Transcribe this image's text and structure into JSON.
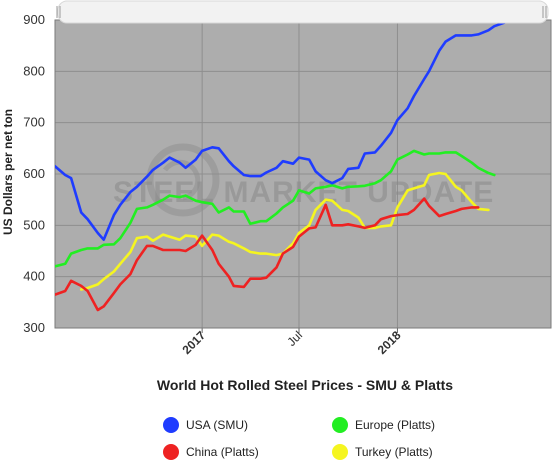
{
  "chart_data": {
    "type": "line",
    "title": "World Hot Rolled Steel Prices - SMU & Platts",
    "xlabel": "",
    "ylabel": "US Dollars per net ton",
    "ylim": [
      300,
      900
    ],
    "yticks": [
      300,
      400,
      500,
      600,
      700,
      800,
      900
    ],
    "xlim": [
      "2016-04-01",
      "2018-10-15"
    ],
    "xticks": [
      {
        "date": "2017-01-01",
        "label": "2017",
        "bold": true
      },
      {
        "date": "2017-07-01",
        "label": "Jul",
        "bold": false
      },
      {
        "date": "2018-01-01",
        "label": "2018",
        "bold": true
      }
    ],
    "grid": true,
    "legend_position": "bottom",
    "background": "#adadad",
    "watermark": "STEEL MARKET UPDATE",
    "series": [
      {
        "name": "USA (SMU)",
        "color": "#1f3cff",
        "points": [
          [
            "2016-04-01",
            615
          ],
          [
            "2016-04-20",
            598
          ],
          [
            "2016-05-01",
            592
          ],
          [
            "2016-05-20",
            525
          ],
          [
            "2016-06-01",
            512
          ],
          [
            "2016-06-20",
            485
          ],
          [
            "2016-07-01",
            472
          ],
          [
            "2016-07-20",
            520
          ],
          [
            "2016-08-01",
            540
          ],
          [
            "2016-08-20",
            565
          ],
          [
            "2016-09-01",
            575
          ],
          [
            "2016-09-20",
            595
          ],
          [
            "2016-10-01",
            608
          ],
          [
            "2016-10-20",
            622
          ],
          [
            "2016-11-01",
            632
          ],
          [
            "2016-11-20",
            622
          ],
          [
            "2016-12-01",
            612
          ],
          [
            "2016-12-20",
            628
          ],
          [
            "2017-01-01",
            645
          ],
          [
            "2017-01-20",
            652
          ],
          [
            "2017-02-01",
            650
          ],
          [
            "2017-02-20",
            625
          ],
          [
            "2017-03-01",
            615
          ],
          [
            "2017-03-20",
            598
          ],
          [
            "2017-04-01",
            596
          ],
          [
            "2017-04-20",
            596
          ],
          [
            "2017-05-01",
            603
          ],
          [
            "2017-05-20",
            612
          ],
          [
            "2017-06-01",
            625
          ],
          [
            "2017-06-20",
            620
          ],
          [
            "2017-07-01",
            632
          ],
          [
            "2017-07-20",
            628
          ],
          [
            "2017-08-01",
            605
          ],
          [
            "2017-08-20",
            588
          ],
          [
            "2017-09-01",
            582
          ],
          [
            "2017-09-20",
            592
          ],
          [
            "2017-10-01",
            610
          ],
          [
            "2017-10-20",
            612
          ],
          [
            "2017-11-01",
            640
          ],
          [
            "2017-11-20",
            642
          ],
          [
            "2017-12-01",
            655
          ],
          [
            "2017-12-20",
            680
          ],
          [
            "2018-01-01",
            705
          ],
          [
            "2018-01-20",
            728
          ],
          [
            "2018-02-01",
            752
          ],
          [
            "2018-02-20",
            785
          ],
          [
            "2018-03-01",
            800
          ],
          [
            "2018-03-20",
            840
          ],
          [
            "2018-04-01",
            858
          ],
          [
            "2018-04-20",
            870
          ],
          [
            "2018-05-01",
            870
          ],
          [
            "2018-05-20",
            870
          ],
          [
            "2018-06-01",
            872
          ],
          [
            "2018-06-20",
            880
          ],
          [
            "2018-07-01",
            888
          ],
          [
            "2018-07-20",
            895
          ],
          [
            "2018-08-01",
            902
          ],
          [
            "2018-08-20",
            908
          ],
          [
            "2018-09-01",
            912
          ]
        ]
      },
      {
        "name": "Europe (Platts)",
        "color": "#22ee22",
        "points": [
          [
            "2016-04-01",
            420
          ],
          [
            "2016-04-20",
            425
          ],
          [
            "2016-05-01",
            445
          ],
          [
            "2016-05-20",
            452
          ],
          [
            "2016-06-01",
            455
          ],
          [
            "2016-06-20",
            455
          ],
          [
            "2016-07-01",
            462
          ],
          [
            "2016-07-20",
            463
          ],
          [
            "2016-08-01",
            475
          ],
          [
            "2016-08-20",
            505
          ],
          [
            "2016-09-01",
            532
          ],
          [
            "2016-09-20",
            535
          ],
          [
            "2016-10-01",
            540
          ],
          [
            "2016-10-20",
            550
          ],
          [
            "2016-11-01",
            558
          ],
          [
            "2016-11-20",
            555
          ],
          [
            "2016-12-01",
            558
          ],
          [
            "2016-12-20",
            548
          ],
          [
            "2017-01-01",
            545
          ],
          [
            "2017-01-20",
            542
          ],
          [
            "2017-02-01",
            525
          ],
          [
            "2017-02-20",
            535
          ],
          [
            "2017-03-01",
            527
          ],
          [
            "2017-03-20",
            527
          ],
          [
            "2017-04-01",
            503
          ],
          [
            "2017-04-20",
            508
          ],
          [
            "2017-05-01",
            508
          ],
          [
            "2017-05-20",
            523
          ],
          [
            "2017-06-01",
            535
          ],
          [
            "2017-06-20",
            548
          ],
          [
            "2017-07-01",
            568
          ],
          [
            "2017-07-20",
            562
          ],
          [
            "2017-08-01",
            572
          ],
          [
            "2017-08-20",
            575
          ],
          [
            "2017-09-01",
            578
          ],
          [
            "2017-09-20",
            572
          ],
          [
            "2017-10-01",
            575
          ],
          [
            "2017-10-20",
            576
          ],
          [
            "2017-11-01",
            577
          ],
          [
            "2017-11-20",
            582
          ],
          [
            "2017-12-01",
            588
          ],
          [
            "2017-12-20",
            605
          ],
          [
            "2018-01-01",
            628
          ],
          [
            "2018-01-20",
            638
          ],
          [
            "2018-02-01",
            645
          ],
          [
            "2018-02-20",
            638
          ],
          [
            "2018-03-01",
            640
          ],
          [
            "2018-03-20",
            640
          ],
          [
            "2018-04-01",
            642
          ],
          [
            "2018-04-20",
            642
          ],
          [
            "2018-05-01",
            635
          ],
          [
            "2018-05-20",
            622
          ],
          [
            "2018-06-01",
            612
          ],
          [
            "2018-06-20",
            602
          ],
          [
            "2018-07-01",
            598
          ]
        ]
      },
      {
        "name": "China (Platts)",
        "color": "#ee2222",
        "points": [
          [
            "2016-04-01",
            365
          ],
          [
            "2016-04-20",
            372
          ],
          [
            "2016-05-01",
            392
          ],
          [
            "2016-05-20",
            382
          ],
          [
            "2016-06-01",
            372
          ],
          [
            "2016-06-20",
            335
          ],
          [
            "2016-07-01",
            342
          ],
          [
            "2016-07-20",
            368
          ],
          [
            "2016-08-01",
            385
          ],
          [
            "2016-08-20",
            405
          ],
          [
            "2016-09-01",
            432
          ],
          [
            "2016-09-20",
            460
          ],
          [
            "2016-10-01",
            460
          ],
          [
            "2016-10-20",
            452
          ],
          [
            "2016-11-01",
            452
          ],
          [
            "2016-11-20",
            452
          ],
          [
            "2016-12-01",
            450
          ],
          [
            "2016-12-20",
            462
          ],
          [
            "2017-01-01",
            480
          ],
          [
            "2017-01-20",
            452
          ],
          [
            "2017-02-01",
            425
          ],
          [
            "2017-02-20",
            400
          ],
          [
            "2017-03-01",
            382
          ],
          [
            "2017-03-20",
            380
          ],
          [
            "2017-04-01",
            396
          ],
          [
            "2017-04-20",
            396
          ],
          [
            "2017-05-01",
            398
          ],
          [
            "2017-05-20",
            418
          ],
          [
            "2017-06-01",
            445
          ],
          [
            "2017-06-20",
            458
          ],
          [
            "2017-07-01",
            478
          ],
          [
            "2017-07-20",
            494
          ],
          [
            "2017-08-01",
            496
          ],
          [
            "2017-08-20",
            540
          ],
          [
            "2017-09-01",
            500
          ],
          [
            "2017-09-20",
            500
          ],
          [
            "2017-10-01",
            502
          ],
          [
            "2017-10-20",
            498
          ],
          [
            "2017-11-01",
            495
          ],
          [
            "2017-11-20",
            500
          ],
          [
            "2017-12-01",
            512
          ],
          [
            "2017-12-20",
            518
          ],
          [
            "2018-01-01",
            520
          ],
          [
            "2018-01-20",
            522
          ],
          [
            "2018-02-01",
            530
          ],
          [
            "2018-02-20",
            552
          ],
          [
            "2018-03-01",
            538
          ],
          [
            "2018-03-20",
            518
          ],
          [
            "2018-04-01",
            522
          ],
          [
            "2018-04-20",
            528
          ],
          [
            "2018-05-01",
            532
          ],
          [
            "2018-05-20",
            535
          ],
          [
            "2018-06-01",
            535
          ]
        ]
      },
      {
        "name": "Turkey (Platts)",
        "color": "#f5f520",
        "points": [
          [
            "2016-05-20",
            375
          ],
          [
            "2016-06-01",
            378
          ],
          [
            "2016-06-20",
            385
          ],
          [
            "2016-07-01",
            395
          ],
          [
            "2016-07-20",
            410
          ],
          [
            "2016-08-01",
            425
          ],
          [
            "2016-08-20",
            448
          ],
          [
            "2016-09-01",
            475
          ],
          [
            "2016-09-20",
            478
          ],
          [
            "2016-10-01",
            470
          ],
          [
            "2016-10-20",
            482
          ],
          [
            "2016-11-01",
            478
          ],
          [
            "2016-11-20",
            472
          ],
          [
            "2016-12-01",
            480
          ],
          [
            "2016-12-20",
            478
          ],
          [
            "2017-01-01",
            460
          ],
          [
            "2017-01-20",
            482
          ],
          [
            "2017-02-01",
            480
          ],
          [
            "2017-02-20",
            468
          ],
          [
            "2017-03-01",
            465
          ],
          [
            "2017-03-20",
            455
          ],
          [
            "2017-04-01",
            448
          ],
          [
            "2017-04-20",
            445
          ],
          [
            "2017-05-01",
            445
          ],
          [
            "2017-05-20",
            442
          ],
          [
            "2017-06-01",
            445
          ],
          [
            "2017-06-20",
            465
          ],
          [
            "2017-07-01",
            485
          ],
          [
            "2017-07-20",
            500
          ],
          [
            "2017-08-01",
            530
          ],
          [
            "2017-08-20",
            550
          ],
          [
            "2017-09-01",
            548
          ],
          [
            "2017-09-20",
            530
          ],
          [
            "2017-10-01",
            528
          ],
          [
            "2017-10-20",
            515
          ],
          [
            "2017-11-01",
            495
          ],
          [
            "2017-11-20",
            495
          ],
          [
            "2017-12-01",
            498
          ],
          [
            "2017-12-20",
            500
          ],
          [
            "2018-01-01",
            535
          ],
          [
            "2018-01-20",
            568
          ],
          [
            "2018-02-01",
            572
          ],
          [
            "2018-02-20",
            578
          ],
          [
            "2018-03-01",
            598
          ],
          [
            "2018-03-20",
            602
          ],
          [
            "2018-04-01",
            600
          ],
          [
            "2018-04-20",
            575
          ],
          [
            "2018-05-01",
            568
          ],
          [
            "2018-05-20",
            545
          ],
          [
            "2018-06-01",
            532
          ],
          [
            "2018-06-20",
            530
          ]
        ]
      }
    ]
  }
}
